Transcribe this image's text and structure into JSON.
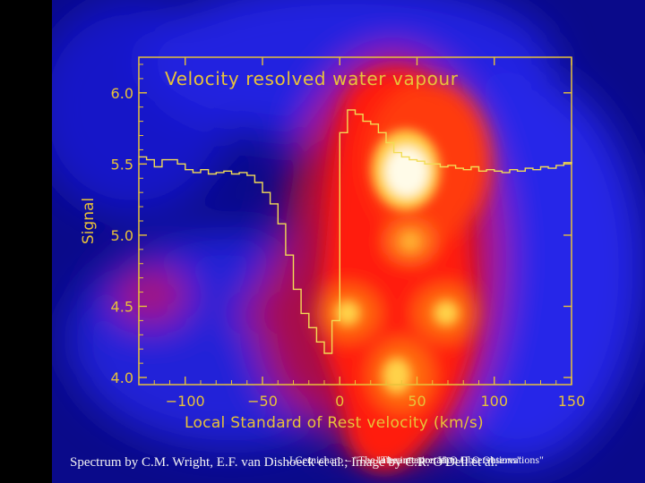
{
  "colors": {
    "axis": "#e8c23a",
    "spectrum": "#f2dc55",
    "caption": "#f4f4f4"
  },
  "chart_data": {
    "type": "line",
    "title": "Velocity resolved water vapour",
    "xlabel": "Local Standard of Rest velocity (km/s)",
    "ylabel": "Signal",
    "xlim": [
      -130,
      150
    ],
    "ylim": [
      3.95,
      6.25
    ],
    "x_ticks": [
      -100,
      -50,
      0,
      50,
      100,
      150
    ],
    "x_tick_labels": [
      "−100",
      "−50",
      "0",
      "50",
      "100",
      "150"
    ],
    "y_ticks": [
      4.0,
      4.5,
      5.0,
      5.5,
      6.0
    ],
    "y_tick_labels": [
      "4.0",
      "4.5",
      "5.0",
      "5.5",
      "6.0"
    ],
    "series": [
      {
        "style": "step",
        "x": [
          -130,
          -125,
          -120,
          -115,
          -110,
          -105,
          -100,
          -95,
          -90,
          -85,
          -80,
          -75,
          -70,
          -65,
          -60,
          -55,
          -50,
          -45,
          -40,
          -35,
          -30,
          -25,
          -20,
          -15,
          -10,
          -5,
          0,
          5,
          10,
          15,
          20,
          25,
          30,
          35,
          40,
          45,
          50,
          55,
          60,
          65,
          70,
          75,
          80,
          85,
          90,
          95,
          100,
          105,
          110,
          115,
          120,
          125,
          130,
          135,
          140,
          145,
          150
        ],
        "y": [
          5.55,
          5.53,
          5.48,
          5.53,
          5.53,
          5.5,
          5.46,
          5.44,
          5.46,
          5.43,
          5.44,
          5.45,
          5.43,
          5.44,
          5.42,
          5.37,
          5.3,
          5.22,
          5.08,
          4.86,
          4.62,
          4.45,
          4.35,
          4.25,
          4.17,
          4.4,
          5.72,
          5.88,
          5.85,
          5.8,
          5.78,
          5.72,
          5.65,
          5.58,
          5.55,
          5.53,
          5.52,
          5.5,
          5.5,
          5.48,
          5.49,
          5.47,
          5.46,
          5.48,
          5.45,
          5.46,
          5.45,
          5.44,
          5.46,
          5.45,
          5.47,
          5.46,
          5.48,
          5.47,
          5.49,
          5.51,
          5.5
        ]
      }
    ]
  },
  "caption": {
    "main": "Spectrum by C.M. Wright, E.F. van Dishoeck et al.; Image by C.R. O'Dell et al.",
    "overlay_a": "J.Cernicharo – \"The interpretation H₂O Observations\"",
    "overlay_b": "\"The interpretation H₂O Observations\""
  }
}
